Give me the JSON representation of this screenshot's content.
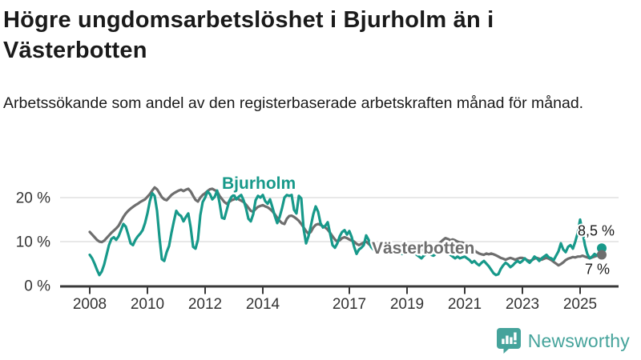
{
  "header": {
    "title": "Högre ungdomsarbetslöshet i Bjurholm än i Västerbotten",
    "subtitle": "Arbetssökande som andel av den registerbaserade arbetskraften månad för månad."
  },
  "chart_data": {
    "type": "line",
    "title": "Högre ungdomsarbetslöshet i Bjurholm än i Västerbotten",
    "ylabel": "",
    "xlabel": "",
    "unit": "%",
    "frequency": "monthly",
    "x_start_year": 2008,
    "x_end": "2025-10",
    "ylim": [
      0,
      24
    ],
    "grid": "horizontal",
    "y_ticks": [
      {
        "value": 0,
        "label": "0 %"
      },
      {
        "value": 10,
        "label": "10 %"
      },
      {
        "value": 20,
        "label": "20 %"
      }
    ],
    "x_tick_years": [
      2008,
      2010,
      2012,
      2014,
      2017,
      2019,
      2021,
      2023,
      2025
    ],
    "colors": {
      "bjurholm": "#17998a",
      "vasterbotten": "#6e6e6e",
      "gridline": "#e0e0e0",
      "axis": "#383838",
      "tick_text": "#333333",
      "end_label_text": "#1a1a1a"
    },
    "series": [
      {
        "name": "Bjurholm",
        "color": "#17998a",
        "end_label": "8,5 %",
        "end_value": 8.5,
        "values": [
          7.0,
          6.2,
          5.0,
          3.6,
          2.4,
          3.2,
          4.8,
          7.0,
          9.2,
          10.6,
          11.0,
          10.4,
          11.2,
          12.6,
          14.0,
          13.4,
          11.6,
          9.6,
          9.2,
          10.4,
          11.2,
          11.8,
          12.6,
          14.2,
          16.4,
          19.2,
          21.0,
          20.4,
          17.0,
          11.0,
          6.0,
          5.6,
          7.6,
          9.0,
          12.0,
          14.6,
          17.0,
          16.2,
          15.8,
          14.6,
          15.6,
          16.4,
          13.2,
          8.8,
          8.4,
          10.4,
          16.0,
          19.0,
          20.0,
          21.4,
          20.8,
          19.6,
          20.2,
          21.6,
          18.8,
          15.4,
          15.2,
          17.2,
          19.2,
          20.2,
          20.6,
          19.6,
          20.2,
          20.6,
          19.4,
          17.6,
          15.2,
          14.6,
          16.2,
          19.4,
          20.4,
          20.0,
          20.6,
          19.2,
          18.6,
          19.6,
          17.8,
          15.8,
          14.2,
          15.6,
          17.6,
          20.0,
          20.6,
          20.4,
          20.6,
          17.2,
          16.4,
          20.4,
          19.8,
          12.8,
          9.6,
          11.2,
          13.6,
          16.2,
          18.0,
          16.8,
          14.2,
          13.2,
          13.6,
          14.4,
          11.8,
          9.2,
          8.6,
          9.6,
          11.2,
          12.2,
          12.6,
          11.6,
          12.4,
          11.0,
          8.8,
          7.2,
          8.2,
          8.6,
          9.2,
          11.4,
          10.4,
          8.8,
          8.2,
          8.4,
          8.8,
          9.4,
          9.8,
          9.0,
          8.2,
          7.6,
          7.2,
          7.6,
          8.2,
          7.8,
          7.2,
          7.6,
          7.2,
          7.6,
          8.0,
          7.6,
          7.0,
          6.6,
          6.2,
          6.8,
          7.2,
          7.6,
          7.0,
          6.8,
          7.2,
          7.6,
          8.2,
          8.6,
          8.0,
          7.4,
          7.0,
          6.6,
          6.2,
          6.6,
          6.2,
          6.4,
          6.6,
          6.2,
          5.8,
          5.2,
          5.6,
          5.0,
          4.6,
          5.2,
          5.6,
          5.0,
          4.4,
          3.6,
          2.8,
          2.4,
          2.6,
          3.8,
          4.6,
          5.2,
          4.8,
          4.2,
          4.6,
          5.2,
          5.6,
          5.2,
          5.6,
          6.2,
          5.6,
          5.2,
          5.8,
          6.6,
          6.2,
          5.6,
          6.2,
          6.6,
          7.0,
          6.4,
          6.2,
          5.8,
          6.8,
          7.8,
          9.6,
          8.2,
          7.6,
          8.8,
          9.2,
          8.4,
          10.0,
          12.0,
          15.0,
          12.2,
          9.2,
          7.2,
          6.2,
          6.6,
          7.2,
          6.8,
          7.6,
          8.5
        ]
      },
      {
        "name": "Västerbotten",
        "color": "#6e6e6e",
        "end_label": "7 %",
        "end_value": 7,
        "values": [
          12.2,
          11.6,
          11.0,
          10.4,
          10.0,
          9.9,
          10.2,
          10.8,
          11.4,
          12.0,
          12.5,
          13.0,
          13.6,
          14.6,
          15.6,
          16.4,
          17.0,
          17.5,
          17.9,
          18.3,
          18.6,
          19.0,
          19.3,
          19.6,
          20.2,
          20.8,
          21.6,
          22.3,
          21.9,
          21.0,
          20.1,
          19.6,
          19.4,
          20.0,
          20.6,
          21.0,
          21.3,
          21.6,
          21.8,
          21.5,
          21.8,
          22.0,
          21.4,
          20.4,
          19.5,
          19.1,
          20.0,
          20.6,
          21.0,
          21.5,
          21.9,
          22.0,
          21.7,
          21.4,
          20.4,
          19.7,
          19.0,
          18.6,
          19.0,
          19.4,
          19.6,
          19.9,
          19.6,
          19.3,
          19.0,
          18.4,
          17.7,
          17.0,
          16.8,
          17.4,
          17.9,
          18.1,
          18.3,
          18.0,
          17.8,
          17.4,
          16.9,
          16.2,
          15.4,
          14.7,
          14.2,
          14.0,
          15.2,
          15.8,
          15.9,
          15.6,
          15.2,
          14.7,
          14.0,
          13.2,
          12.4,
          11.8,
          12.2,
          13.2,
          13.8,
          14.0,
          13.8,
          13.5,
          13.2,
          12.7,
          12.0,
          11.2,
          10.5,
          10.0,
          10.3,
          10.8,
          11.0,
          10.8,
          10.5,
          10.2,
          10.0,
          9.5,
          9.2,
          9.5,
          9.8,
          10.0,
          9.5,
          9.0,
          8.8,
          9.0,
          9.0,
          8.8,
          8.5,
          8.2,
          8.0,
          7.8,
          8.0,
          8.3,
          8.0,
          7.8,
          7.8,
          8.0,
          8.1,
          8.2,
          8.0,
          7.8,
          7.6,
          7.8,
          8.0,
          8.2,
          8.1,
          8.2,
          8.5,
          8.8,
          9.0,
          9.4,
          9.9,
          10.4,
          10.8,
          10.6,
          10.3,
          10.5,
          10.3,
          10.0,
          9.8,
          9.8,
          9.5,
          9.2,
          8.9,
          8.4,
          8.0,
          7.6,
          7.3,
          7.1,
          7.0,
          7.3,
          7.1,
          7.3,
          7.1,
          6.9,
          6.6,
          6.3,
          6.1,
          5.9,
          6.1,
          6.3,
          6.1,
          5.9,
          6.1,
          6.3,
          6.3,
          6.1,
          5.8,
          5.6,
          5.8,
          6.1,
          6.3,
          6.1,
          5.9,
          6.1,
          6.3,
          6.1,
          5.8,
          5.4,
          5.0,
          4.6,
          4.9,
          5.3,
          5.8,
          6.1,
          6.3,
          6.5,
          6.4,
          6.6,
          6.6,
          6.8,
          6.6,
          6.4,
          6.2,
          6.4,
          6.6,
          6.8,
          6.9,
          7.0
        ]
      }
    ]
  },
  "footer": {
    "brand": "Newsworthy",
    "brand_color": "#45a39b",
    "logo_icon": "bar-chart-speech-bubble-icon"
  }
}
